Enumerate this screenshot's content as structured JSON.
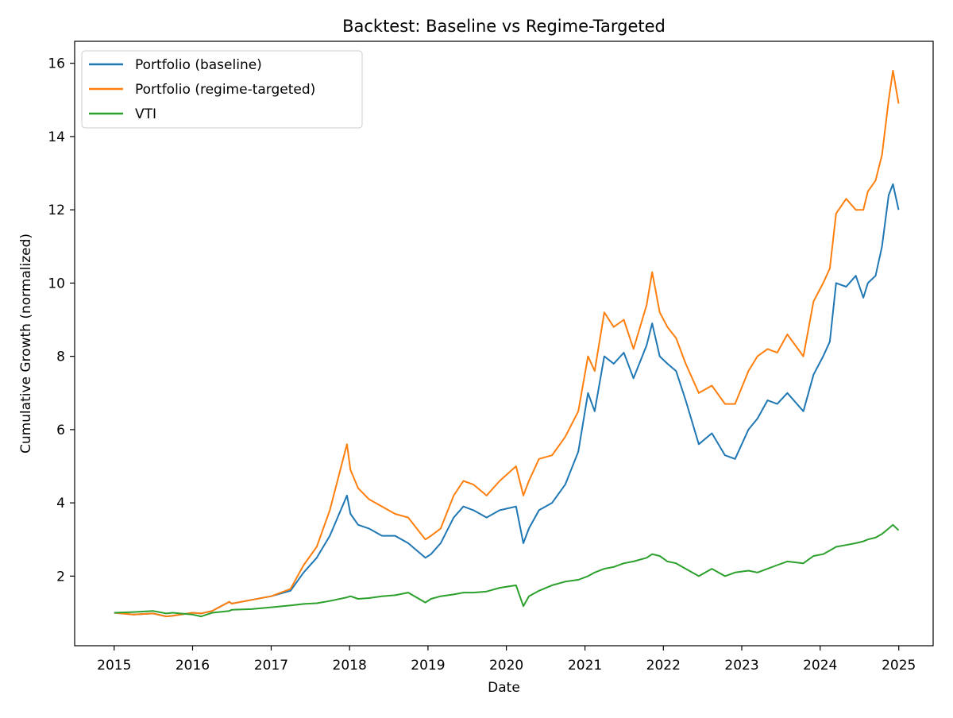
{
  "chart_data": {
    "type": "line",
    "title": "Backtest: Baseline vs Regime-Targeted",
    "xlabel": "Date",
    "ylabel": "Cumulative Growth (normalized)",
    "xlim": [
      "2014-07-01",
      "2025-06-10"
    ],
    "ylim": [
      0.1,
      16.6
    ],
    "x_ticks": [
      "2015",
      "2016",
      "2017",
      "2018",
      "2019",
      "2020",
      "2021",
      "2022",
      "2023",
      "2024",
      "2025"
    ],
    "y_ticks": [
      2,
      4,
      6,
      8,
      10,
      12,
      14,
      16
    ],
    "grid": false,
    "legend_position": "top-left",
    "x": [
      "2015-01-01",
      "2015-04-01",
      "2015-07-01",
      "2015-09-01",
      "2015-10-01",
      "2016-01-01",
      "2016-02-10",
      "2016-04-01",
      "2016-06-20",
      "2016-07-01",
      "2016-10-01",
      "2017-01-01",
      "2017-04-01",
      "2017-06-01",
      "2017-08-01",
      "2017-10-01",
      "2017-12-20",
      "2018-01-05",
      "2018-02-10",
      "2018-04-01",
      "2018-06-01",
      "2018-08-01",
      "2018-10-01",
      "2018-12-20",
      "2019-01-15",
      "2019-03-01",
      "2019-05-01",
      "2019-06-15",
      "2019-08-01",
      "2019-10-01",
      "2019-12-01",
      "2020-02-15",
      "2020-03-20",
      "2020-04-15",
      "2020-06-01",
      "2020-08-01",
      "2020-10-01",
      "2020-12-01",
      "2021-01-15",
      "2021-02-15",
      "2021-04-01",
      "2021-05-15",
      "2021-07-01",
      "2021-08-15",
      "2021-10-15",
      "2021-11-10",
      "2021-12-15",
      "2022-01-20",
      "2022-03-01",
      "2022-04-15",
      "2022-06-15",
      "2022-08-15",
      "2022-10-15",
      "2022-12-01",
      "2023-02-01",
      "2023-03-15",
      "2023-05-01",
      "2023-06-15",
      "2023-08-01",
      "2023-10-15",
      "2023-12-01",
      "2024-01-15",
      "2024-02-15",
      "2024-03-15",
      "2024-05-01",
      "2024-06-15",
      "2024-07-20",
      "2024-08-10",
      "2024-09-15",
      "2024-10-15",
      "2024-11-15",
      "2024-12-05",
      "2024-12-31"
    ],
    "series": [
      {
        "name": "Portfolio (baseline)",
        "color": "#1f77b4",
        "values": [
          1.0,
          0.95,
          0.98,
          0.9,
          0.92,
          1.0,
          0.98,
          1.05,
          1.3,
          1.25,
          1.35,
          1.45,
          1.6,
          2.1,
          2.5,
          3.1,
          4.2,
          3.7,
          3.4,
          3.3,
          3.1,
          3.1,
          2.9,
          2.5,
          2.6,
          2.9,
          3.6,
          3.9,
          3.8,
          3.6,
          3.8,
          3.9,
          2.9,
          3.3,
          3.8,
          4.0,
          4.5,
          5.4,
          7.0,
          6.5,
          8.0,
          7.8,
          8.1,
          7.4,
          8.3,
          8.9,
          8.0,
          7.8,
          7.6,
          6.8,
          5.6,
          5.9,
          5.3,
          5.2,
          6.0,
          6.3,
          6.8,
          6.7,
          7.0,
          6.5,
          7.5,
          8.0,
          8.4,
          10.0,
          9.9,
          10.2,
          9.6,
          10.0,
          10.2,
          11.0,
          12.4,
          12.7,
          12.0
        ]
      },
      {
        "name": "Portfolio (regime-targeted)",
        "color": "#ff7f0e",
        "values": [
          1.0,
          0.95,
          0.98,
          0.9,
          0.92,
          1.0,
          0.98,
          1.05,
          1.3,
          1.25,
          1.35,
          1.45,
          1.65,
          2.3,
          2.8,
          3.8,
          5.6,
          4.9,
          4.4,
          4.1,
          3.9,
          3.7,
          3.6,
          3.0,
          3.1,
          3.3,
          4.2,
          4.6,
          4.5,
          4.2,
          4.6,
          5.0,
          4.2,
          4.6,
          5.2,
          5.3,
          5.8,
          6.5,
          8.0,
          7.6,
          9.2,
          8.8,
          9.0,
          8.2,
          9.4,
          10.3,
          9.2,
          8.8,
          8.5,
          7.8,
          7.0,
          7.2,
          6.7,
          6.7,
          7.6,
          8.0,
          8.2,
          8.1,
          8.6,
          8.0,
          9.5,
          10.0,
          10.4,
          11.9,
          12.3,
          12.0,
          12.0,
          12.5,
          12.8,
          13.5,
          15.0,
          15.8,
          14.9
        ]
      },
      {
        "name": "VTI",
        "color": "#2ca02c",
        "values": [
          1.0,
          1.02,
          1.05,
          0.98,
          1.0,
          0.95,
          0.9,
          1.0,
          1.05,
          1.08,
          1.1,
          1.15,
          1.2,
          1.24,
          1.26,
          1.32,
          1.42,
          1.45,
          1.38,
          1.4,
          1.45,
          1.48,
          1.55,
          1.28,
          1.38,
          1.45,
          1.5,
          1.55,
          1.55,
          1.58,
          1.68,
          1.75,
          1.18,
          1.45,
          1.6,
          1.75,
          1.85,
          1.9,
          2.0,
          2.1,
          2.2,
          2.25,
          2.35,
          2.4,
          2.5,
          2.6,
          2.55,
          2.4,
          2.35,
          2.2,
          2.0,
          2.2,
          2.0,
          2.1,
          2.15,
          2.1,
          2.2,
          2.3,
          2.4,
          2.35,
          2.55,
          2.6,
          2.7,
          2.8,
          2.85,
          2.9,
          2.95,
          3.0,
          3.05,
          3.15,
          3.3,
          3.4,
          3.25
        ]
      }
    ]
  }
}
